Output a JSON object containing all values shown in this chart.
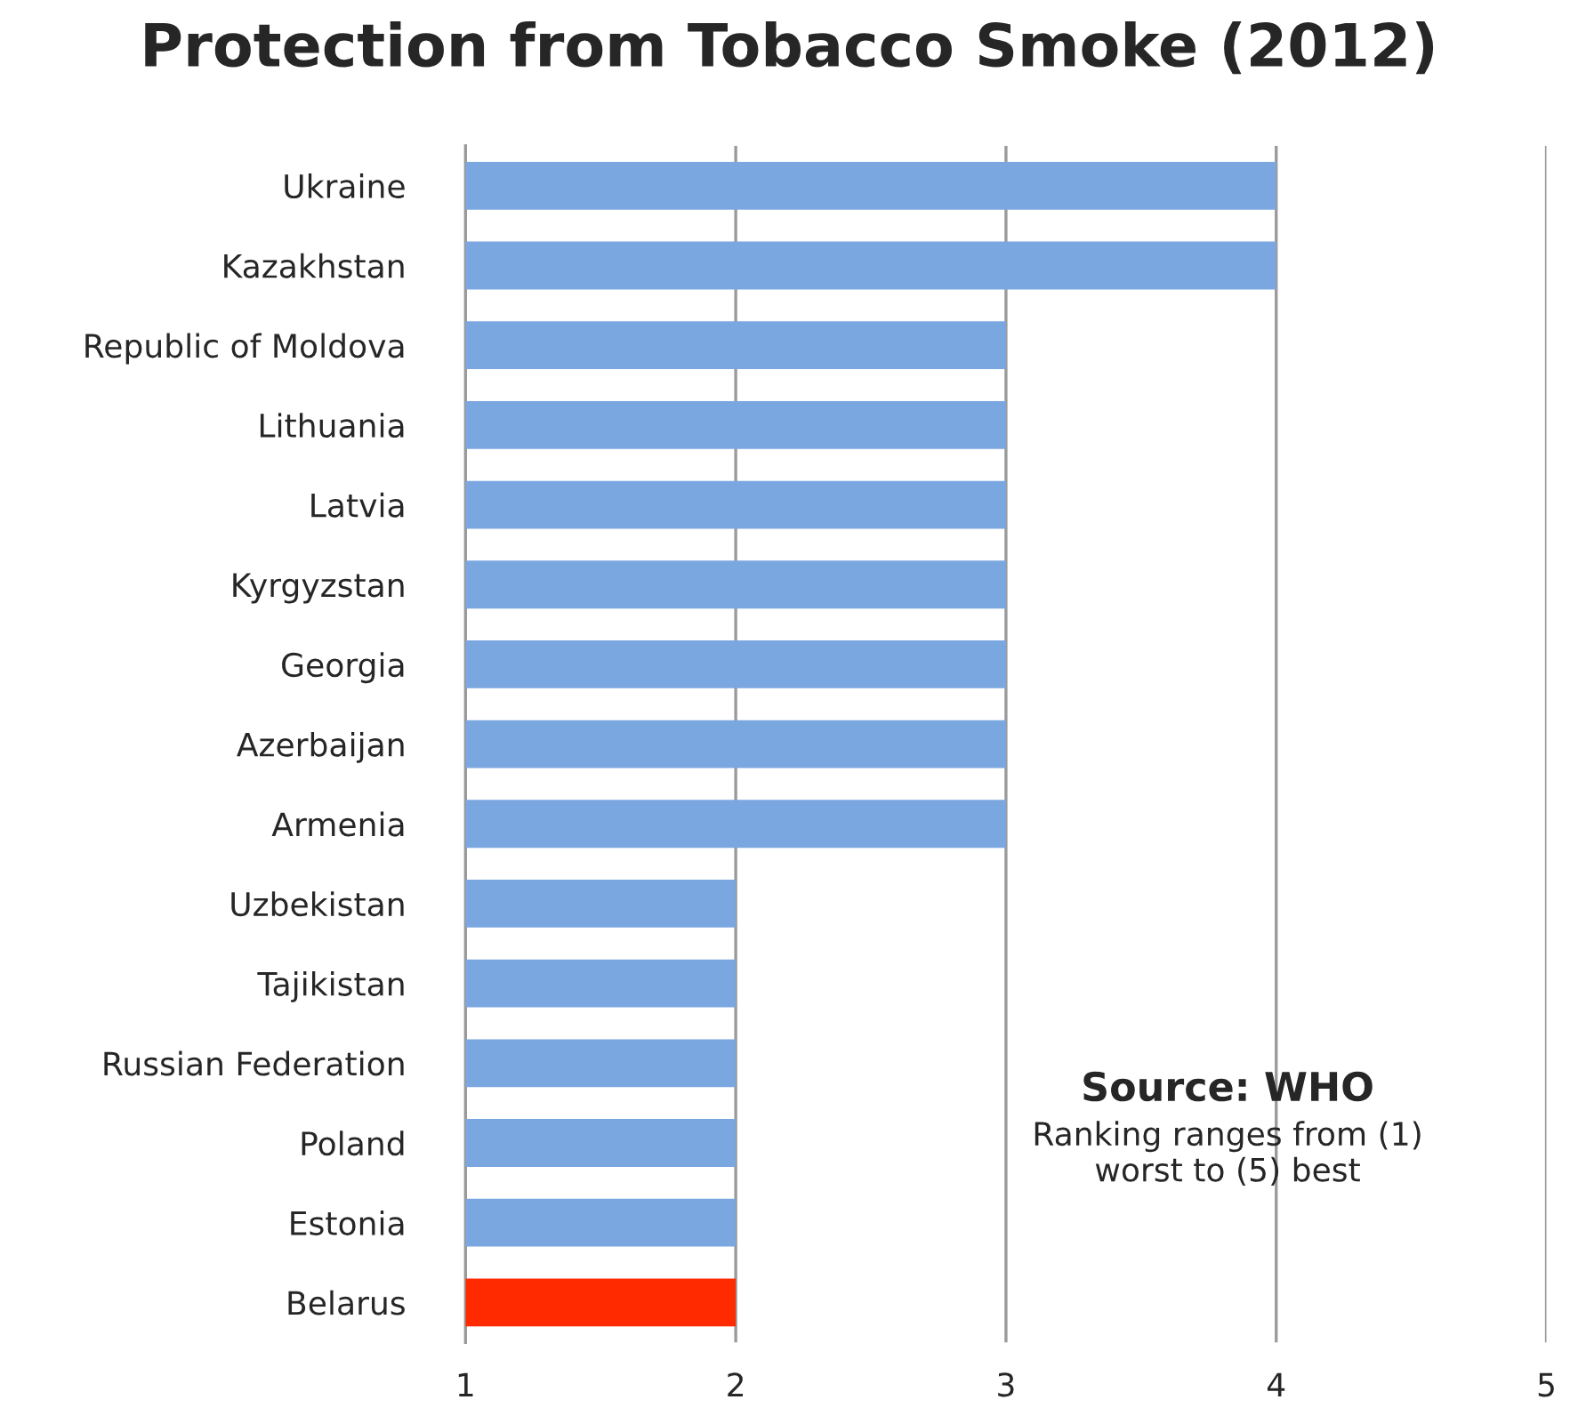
{
  "chart_data": {
    "type": "bar",
    "orientation": "horizontal",
    "title": "Protection from Tobacco Smoke (2012)",
    "categories": [
      "Ukraine",
      "Kazakhstan",
      "Republic of Moldova",
      "Lithuania",
      "Latvia",
      "Kyrgyzstan",
      "Georgia",
      "Azerbaijan",
      "Armenia",
      "Uzbekistan",
      "Tajikistan",
      "Russian Federation",
      "Poland",
      "Estonia",
      "Belarus"
    ],
    "values": [
      4,
      4,
      3,
      3,
      3,
      3,
      3,
      3,
      3,
      2,
      2,
      2,
      2,
      2,
      2
    ],
    "colors": [
      "#7ba7e1",
      "#7ba7e1",
      "#7ba7e1",
      "#7ba7e1",
      "#7ba7e1",
      "#7ba7e1",
      "#7ba7e1",
      "#7ba7e1",
      "#7ba7e1",
      "#7ba7e1",
      "#7ba7e1",
      "#7ba7e1",
      "#7ba7e1",
      "#7ba7e1",
      "#ff2a00"
    ],
    "xlim": [
      1,
      5
    ],
    "xticks": [
      1,
      2,
      3,
      4,
      5
    ],
    "grid": "x",
    "legend": false,
    "annotations": [
      "Source: WHO",
      "Ranking ranges from (1)\nworst to (5) best"
    ]
  }
}
